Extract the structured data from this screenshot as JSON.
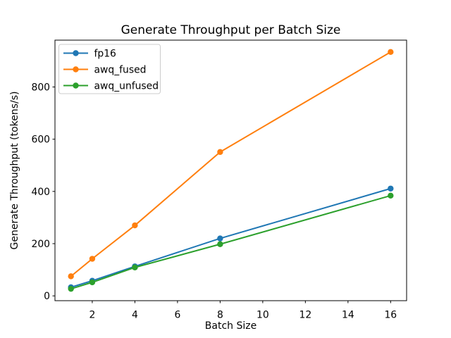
{
  "chart_data": {
    "type": "line",
    "title": "Generate Throughput per Batch Size",
    "xlabel": "Batch Size",
    "ylabel": "Generate Throughput (tokens/s)",
    "x": [
      1,
      2,
      4,
      8,
      16
    ],
    "series": [
      {
        "name": "fp16",
        "color": "#1f77b4",
        "values": [
          33,
          58,
          113,
          220,
          411
        ]
      },
      {
        "name": "awq_fused",
        "color": "#ff7f0e",
        "values": [
          75,
          142,
          270,
          551,
          934
        ]
      },
      {
        "name": "awq_unfused",
        "color": "#2ca02c",
        "values": [
          27,
          52,
          109,
          198,
          384
        ]
      }
    ],
    "xticks": [
      2,
      4,
      6,
      8,
      10,
      12,
      14,
      16
    ],
    "yticks": [
      0,
      200,
      400,
      600,
      800
    ],
    "xlim": [
      0.25,
      16.75
    ],
    "ylim": [
      -18.4,
      979.4
    ],
    "grid": false,
    "marker": "o",
    "legend": {
      "position": "upper-left",
      "entries": [
        "fp16",
        "awq_fused",
        "awq_unfused"
      ]
    },
    "colors": {
      "spine": "#000000",
      "legend_border": "#cccccc",
      "background": "#ffffff"
    }
  }
}
